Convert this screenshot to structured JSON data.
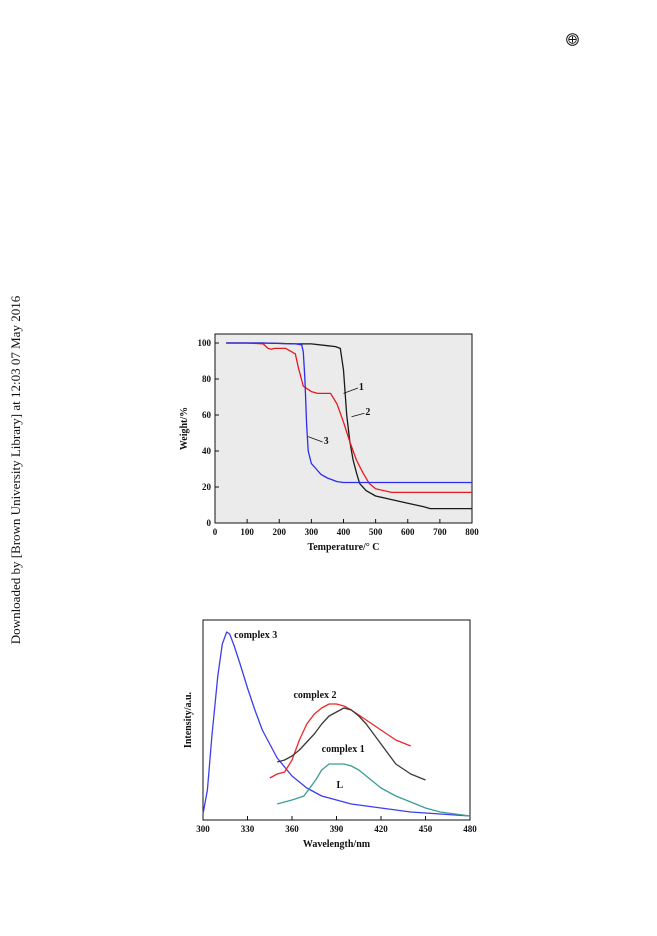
{
  "margin_note": "Downloaded by [Brown University Library] at 12:03 07 May 2016",
  "chart_data": [
    {
      "type": "line",
      "xlabel": "Temperature/° C",
      "ylabel": "Weight/%",
      "xlim": [
        0,
        800
      ],
      "ylim": [
        0,
        105
      ],
      "xticks": [
        0,
        100,
        200,
        300,
        400,
        500,
        600,
        700,
        800
      ],
      "yticks": [
        0,
        20,
        40,
        60,
        80,
        100
      ],
      "grid": false,
      "background": "#ebebeb",
      "series": [
        {
          "name": "1",
          "color": "#1a1a1a",
          "x": [
            35,
            150,
            250,
            300,
            350,
            375,
            390,
            400,
            410,
            420,
            430,
            440,
            450,
            470,
            500,
            550,
            600,
            650,
            670,
            700,
            800
          ],
          "y": [
            100,
            100,
            99.5,
            99.5,
            98.5,
            98,
            97,
            85,
            60,
            45,
            35,
            28,
            22,
            18,
            15,
            13,
            11,
            9,
            8,
            8,
            8
          ]
        },
        {
          "name": "2",
          "color": "#e8191e",
          "x": [
            35,
            100,
            150,
            165,
            175,
            185,
            220,
            250,
            260,
            275,
            300,
            320,
            340,
            360,
            380,
            400,
            420,
            440,
            460,
            480,
            500,
            550,
            600,
            700,
            800
          ],
          "y": [
            100,
            100,
            99.5,
            97,
            96.5,
            97,
            97,
            94,
            86,
            76,
            73,
            72,
            72,
            72,
            66,
            56,
            45,
            35,
            28,
            22,
            19,
            17,
            17,
            17,
            17
          ]
        },
        {
          "name": "3",
          "color": "#2c2cf0",
          "x": [
            35,
            150,
            250,
            270,
            275,
            280,
            285,
            290,
            300,
            315,
            330,
            350,
            380,
            400,
            500,
            600,
            700,
            800
          ],
          "y": [
            100,
            100,
            99.5,
            99,
            95,
            80,
            55,
            40,
            33,
            30,
            27,
            25,
            23,
            22.5,
            22.5,
            22.5,
            22.5,
            22.5
          ]
        }
      ],
      "annotations": [
        {
          "text": "1",
          "x": 448,
          "y": 74
        },
        {
          "text": "2",
          "x": 468,
          "y": 60
        },
        {
          "text": "3",
          "x": 338,
          "y": 44
        }
      ]
    },
    {
      "type": "line",
      "xlabel": "Wavelength/nm",
      "ylabel": "Intensity/a.u.",
      "xlim": [
        300,
        480
      ],
      "ylim": [
        0,
        100
      ],
      "xticks": [
        300,
        330,
        360,
        390,
        420,
        450,
        480
      ],
      "yticks": [],
      "grid": false,
      "background": "#ffffff",
      "series": [
        {
          "name": "complex 3",
          "color": "#3d3df0",
          "x": [
            300,
            303,
            306,
            310,
            313,
            316,
            318,
            321,
            325,
            330,
            335,
            340,
            350,
            360,
            370,
            380,
            390,
            400,
            420,
            440,
            460,
            480
          ],
          "y": [
            3,
            15,
            42,
            72,
            88,
            94,
            93,
            87,
            78,
            66,
            55,
            45,
            31,
            22,
            16,
            12,
            10,
            8,
            6,
            4,
            3,
            2
          ]
        },
        {
          "name": "complex 2",
          "color": "#ee2828",
          "x": [
            345,
            350,
            355,
            360,
            365,
            370,
            375,
            380,
            385,
            390,
            395,
            400,
            410,
            420,
            430,
            440
          ],
          "y": [
            21,
            23,
            24,
            30,
            40,
            48,
            53,
            56,
            58,
            58,
            57,
            55,
            50,
            45,
            40,
            37
          ]
        },
        {
          "name": "complex 1",
          "color": "#3a3a3a",
          "x": [
            350,
            355,
            360,
            365,
            370,
            375,
            380,
            385,
            390,
            395,
            400,
            405,
            410,
            415,
            420,
            425,
            430,
            440,
            450
          ],
          "y": [
            29,
            30,
            32,
            35,
            39,
            43,
            48,
            52,
            54,
            56,
            55,
            52,
            48,
            43,
            38,
            33,
            28,
            23,
            20
          ]
        },
        {
          "name": "L",
          "color": "#3a9e96",
          "x": [
            350,
            355,
            360,
            368,
            372,
            376,
            380,
            385,
            390,
            395,
            400,
            405,
            410,
            420,
            430,
            440,
            450,
            460,
            470,
            480
          ],
          "y": [
            8,
            9,
            10,
            12,
            16,
            20,
            25,
            28,
            28,
            28,
            27,
            25,
            22,
            16,
            12,
            9,
            6,
            4,
            3,
            2
          ]
        }
      ],
      "annotations": [
        {
          "text": "complex 3",
          "x": 321,
          "y": 91
        },
        {
          "text": "complex 2",
          "x": 361,
          "y": 61
        },
        {
          "text": "complex 1",
          "x": 380,
          "y": 34
        },
        {
          "text": "L",
          "x": 390,
          "y": 16
        }
      ]
    }
  ]
}
